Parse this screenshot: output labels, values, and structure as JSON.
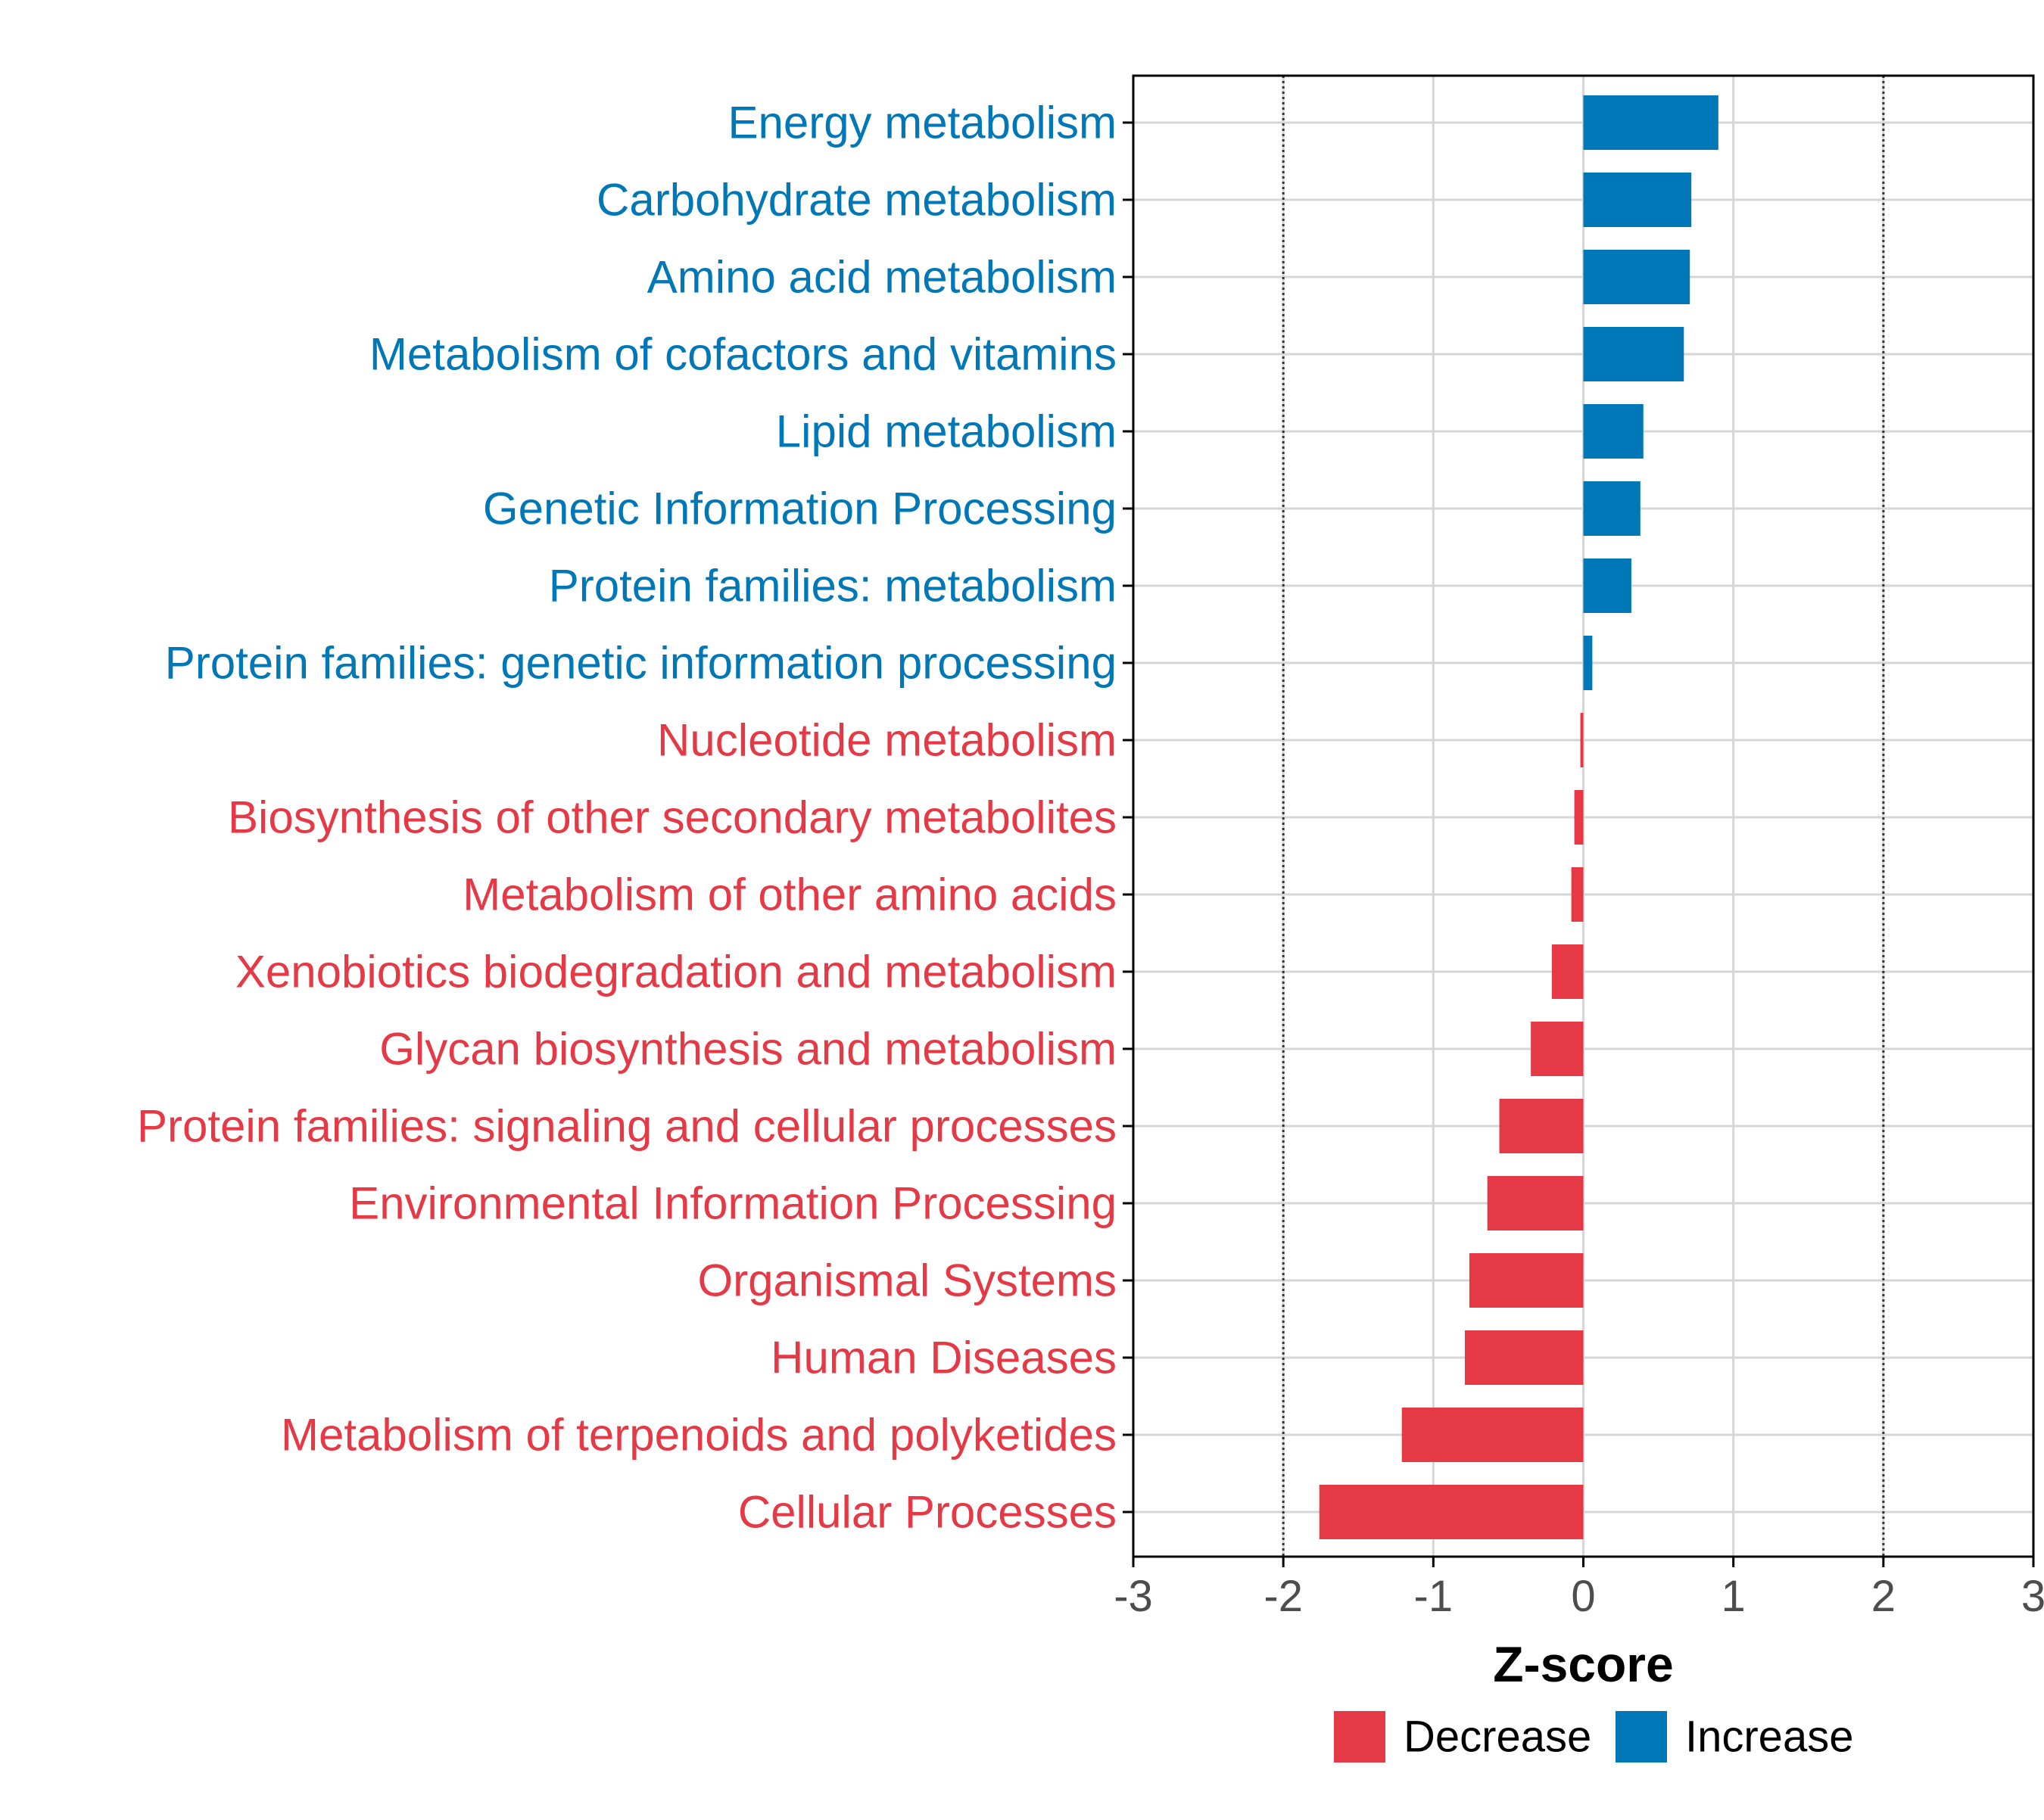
{
  "chart_data": {
    "type": "bar",
    "orientation": "horizontal",
    "categories": [
      "Energy metabolism",
      "Carbohydrate metabolism",
      "Amino acid metabolism",
      "Metabolism of cofactors and vitamins",
      "Lipid metabolism",
      "Genetic Information Processing",
      "Protein families: metabolism",
      "Protein families: genetic information processing",
      "Nucleotide metabolism",
      "Biosynthesis of other secondary metabolites",
      "Metabolism of other amino acids",
      "Xenobiotics biodegradation and metabolism",
      "Glycan biosynthesis and metabolism",
      "Protein families: signaling and cellular processes",
      "Environmental Information Processing",
      "Organismal Systems",
      "Human Diseases",
      "Metabolism of terpenoids and polyketides",
      "Cellular Processes"
    ],
    "values": [
      0.9,
      0.72,
      0.71,
      0.67,
      0.4,
      0.38,
      0.32,
      0.06,
      -0.02,
      -0.06,
      -0.08,
      -0.21,
      -0.35,
      -0.56,
      -0.64,
      -0.76,
      -0.79,
      -1.21,
      -1.76
    ],
    "groups": [
      "Increase",
      "Increase",
      "Increase",
      "Increase",
      "Increase",
      "Increase",
      "Increase",
      "Increase",
      "Decrease",
      "Decrease",
      "Decrease",
      "Decrease",
      "Decrease",
      "Decrease",
      "Decrease",
      "Decrease",
      "Decrease",
      "Decrease",
      "Decrease"
    ],
    "xlabel": "Z-score",
    "ylabel": "",
    "xlim": [
      -3,
      3
    ],
    "xticks": [
      -3,
      -2,
      -1,
      0,
      1,
      2,
      3
    ],
    "xtick_labels": [
      "-3",
      "-2",
      "-1",
      "0",
      "1",
      "2",
      "3"
    ],
    "reference_lines": [
      -2,
      2
    ],
    "grid": true,
    "legend": {
      "position": "bottom",
      "entries": [
        {
          "name": "Decrease",
          "color": "#E63946"
        },
        {
          "name": "Increase",
          "color": "#0077B6"
        }
      ]
    },
    "colors": {
      "Increase": "#0077B6",
      "Decrease": "#E63946"
    }
  }
}
